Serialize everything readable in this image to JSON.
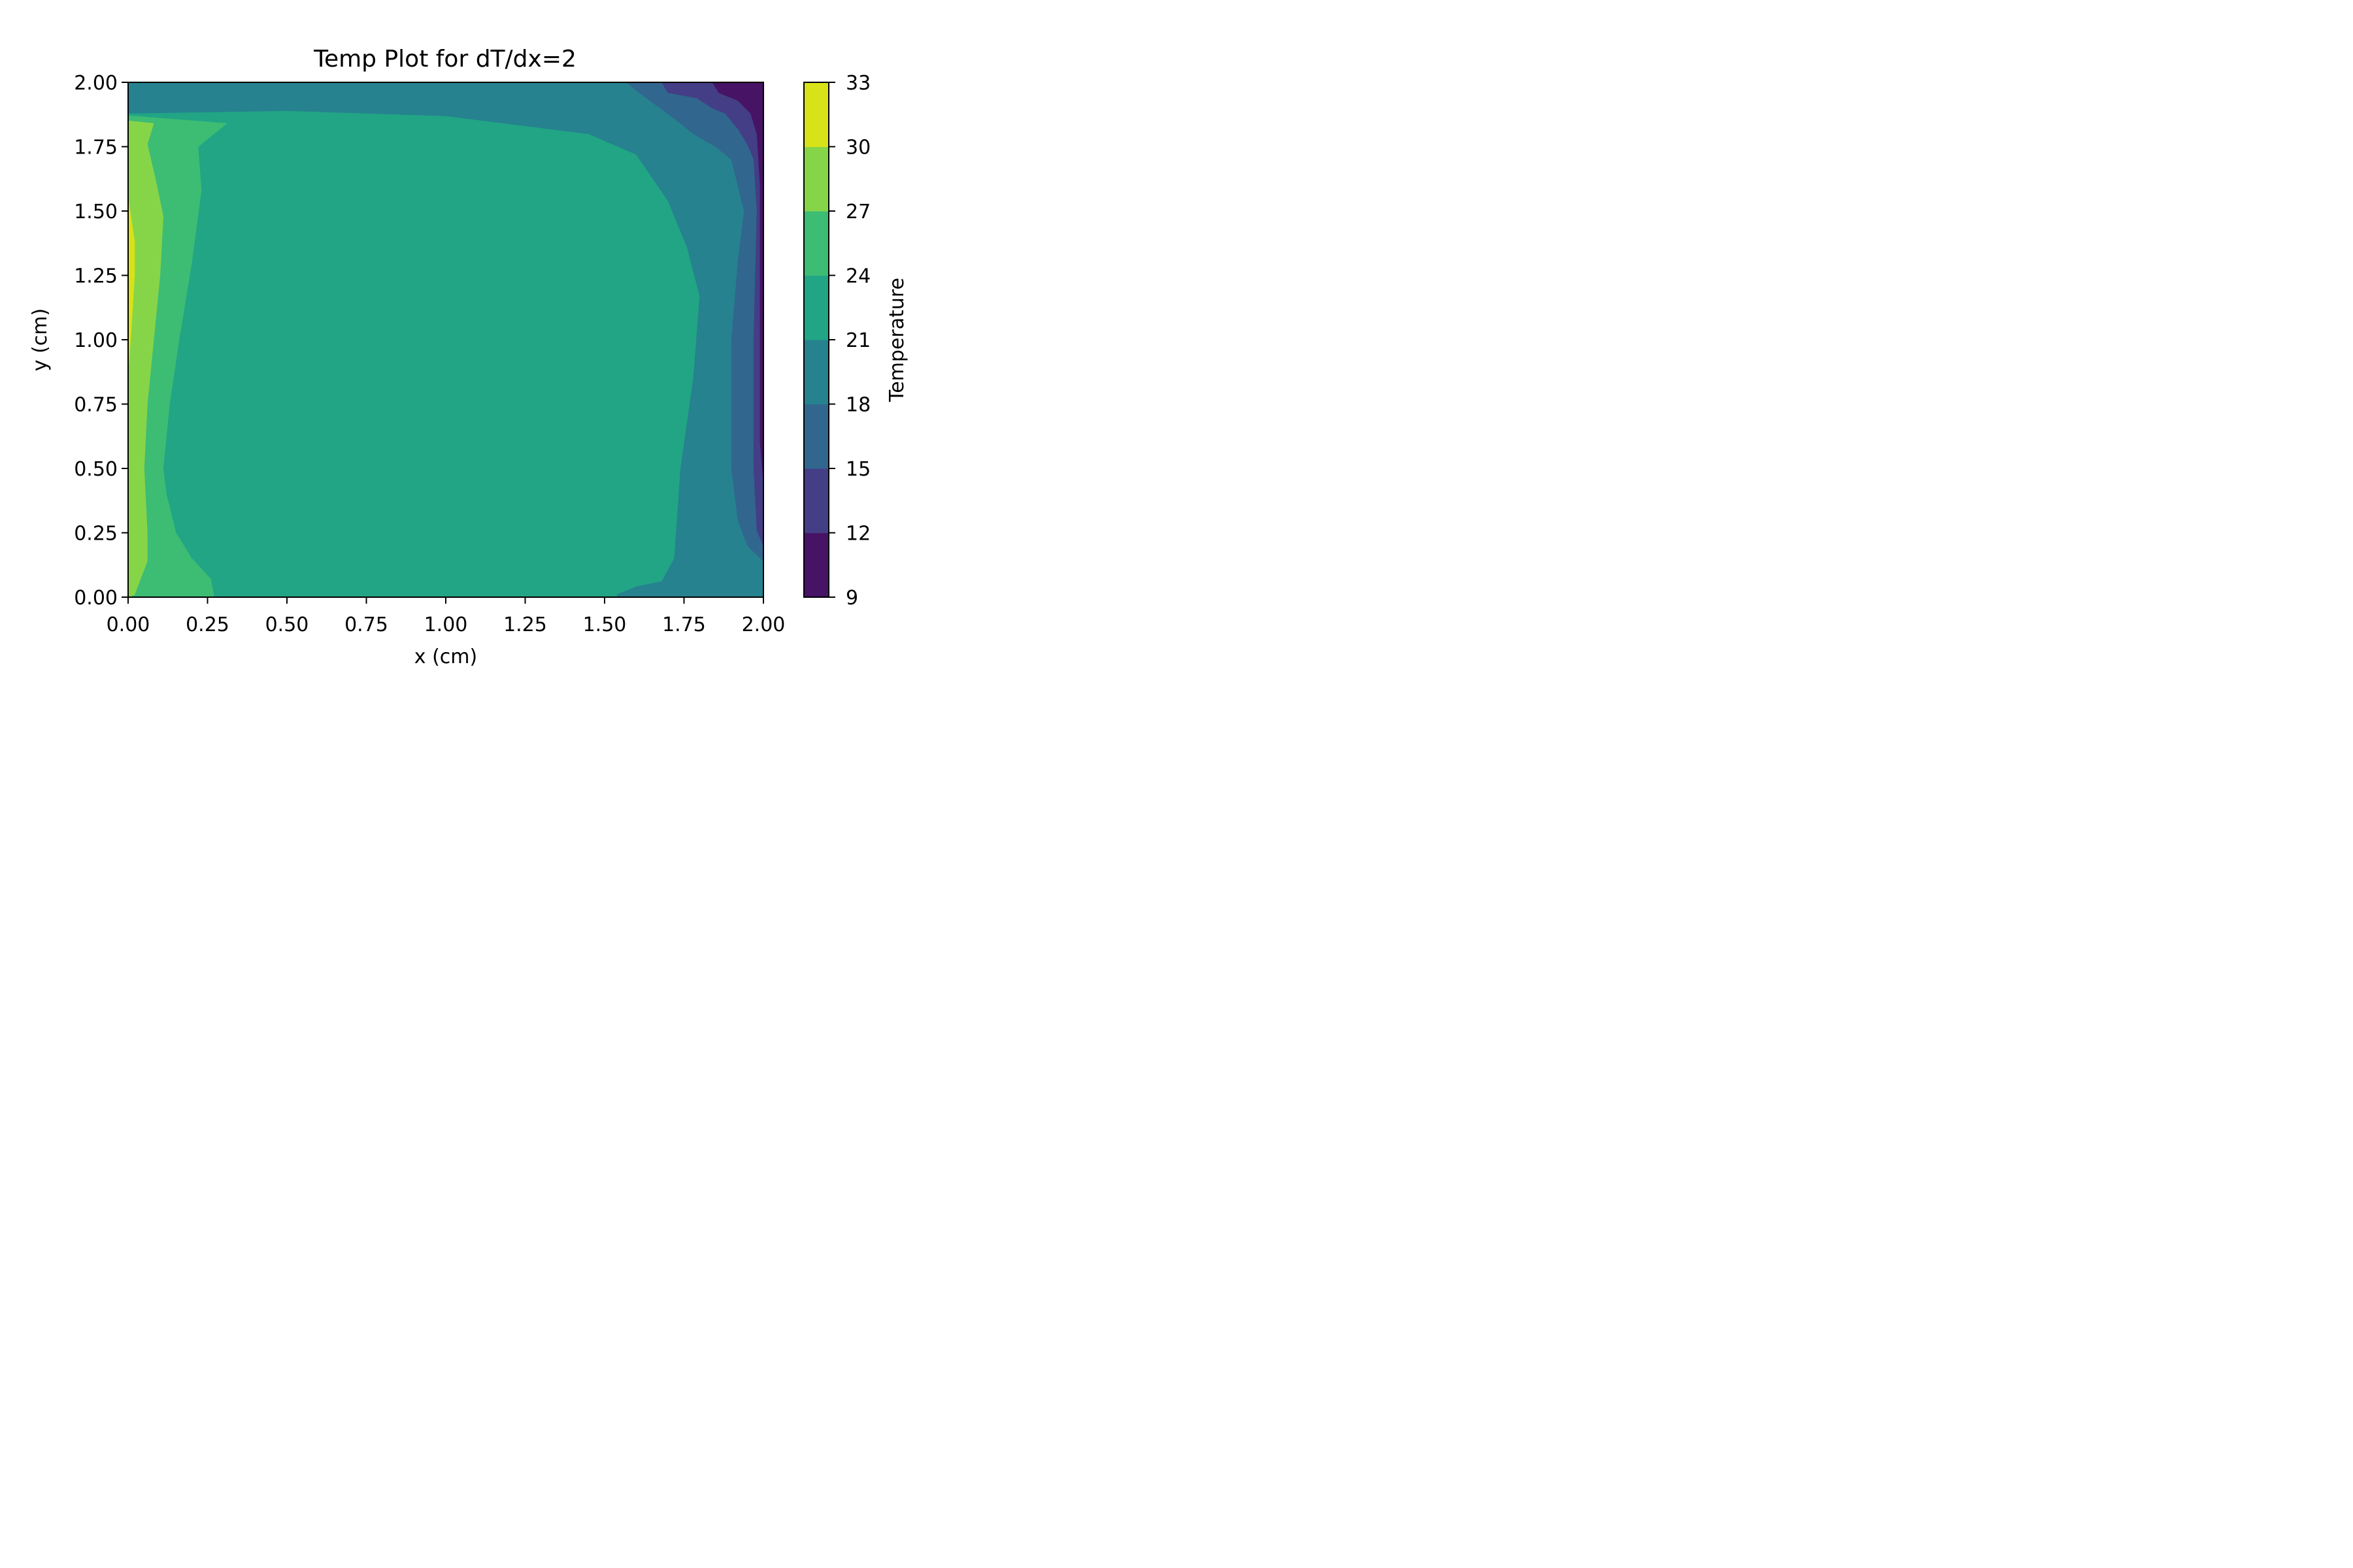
{
  "chart_data": {
    "type": "heatmap",
    "subtype": "filled-contour",
    "title": "Temp Plot for dT/dx=2",
    "xlabel": "x (cm)",
    "ylabel": "y (cm)",
    "xlim": [
      0.0,
      2.0
    ],
    "ylim": [
      0.0,
      2.0
    ],
    "x_ticks": [
      "0.00",
      "0.25",
      "0.50",
      "0.75",
      "1.00",
      "1.25",
      "1.50",
      "1.75",
      "2.00"
    ],
    "y_ticks": [
      "0.00",
      "0.25",
      "0.50",
      "0.75",
      "1.00",
      "1.25",
      "1.50",
      "1.75",
      "2.00"
    ],
    "grid": false,
    "colormap": "viridis",
    "colorbar": {
      "label": "Temperature",
      "levels": [
        9,
        12,
        15,
        18,
        21,
        24,
        27,
        30,
        33
      ],
      "tick_labels": [
        "9",
        "12",
        "15",
        "18",
        "21",
        "24",
        "27",
        "30",
        "33"
      ],
      "colors": [
        "#471365",
        "#433e85",
        "#31668e",
        "#26828e",
        "#21a585",
        "#3dbc74",
        "#86d549",
        "#d8e219"
      ]
    },
    "contour_regions": [
      {
        "band": [
          21,
          24
        ],
        "color": "#21a585",
        "points": [
          [
            0.0,
            0.0
          ],
          [
            2.0,
            0.0
          ],
          [
            2.0,
            2.0
          ],
          [
            0.0,
            2.0
          ]
        ]
      },
      {
        "band": [
          18,
          21
        ],
        "color": "#26828e",
        "points": [
          [
            1.54,
            0.0
          ],
          [
            2.0,
            0.0
          ],
          [
            2.0,
            2.0
          ],
          [
            0.0,
            2.0
          ],
          [
            0.0,
            1.88
          ],
          [
            0.5,
            1.89
          ],
          [
            1.0,
            1.87
          ],
          [
            1.45,
            1.8
          ],
          [
            1.6,
            1.72
          ],
          [
            1.7,
            1.54
          ],
          [
            1.76,
            1.36
          ],
          [
            1.8,
            1.17
          ],
          [
            1.78,
            0.85
          ],
          [
            1.74,
            0.5
          ],
          [
            1.72,
            0.15
          ],
          [
            1.68,
            0.06
          ],
          [
            1.6,
            0.04
          ],
          [
            1.54,
            0.01
          ]
        ]
      },
      {
        "band": [
          15,
          18
        ],
        "color": "#31668e",
        "points": [
          [
            2.0,
            0.14
          ],
          [
            1.95,
            0.2
          ],
          [
            1.92,
            0.3
          ],
          [
            1.9,
            0.5
          ],
          [
            1.9,
            1.0
          ],
          [
            1.92,
            1.3
          ],
          [
            1.94,
            1.5
          ],
          [
            1.9,
            1.7
          ],
          [
            1.85,
            1.75
          ],
          [
            1.78,
            1.8
          ],
          [
            1.72,
            1.86
          ],
          [
            1.62,
            1.95
          ],
          [
            1.57,
            2.0
          ],
          [
            2.0,
            2.0
          ]
        ]
      },
      {
        "band": [
          12,
          15
        ],
        "color": "#433e85",
        "points": [
          [
            2.0,
            0.2
          ],
          [
            1.98,
            0.26
          ],
          [
            1.97,
            0.5
          ],
          [
            1.97,
            1.0
          ],
          [
            1.98,
            1.5
          ],
          [
            1.97,
            1.7
          ],
          [
            1.95,
            1.76
          ],
          [
            1.92,
            1.82
          ],
          [
            1.88,
            1.88
          ],
          [
            1.84,
            1.9
          ],
          [
            1.79,
            1.94
          ],
          [
            1.7,
            1.96
          ],
          [
            1.68,
            2.0
          ],
          [
            2.0,
            2.0
          ]
        ]
      },
      {
        "band": [
          9,
          12
        ],
        "color": "#471365",
        "points": [
          [
            2.0,
            0.45
          ],
          [
            1.99,
            0.6
          ],
          [
            1.99,
            1.2
          ],
          [
            1.99,
            1.6
          ],
          [
            1.98,
            1.8
          ],
          [
            1.96,
            1.88
          ],
          [
            1.92,
            1.93
          ],
          [
            1.86,
            1.96
          ],
          [
            1.84,
            2.0
          ],
          [
            2.0,
            2.0
          ]
        ]
      },
      {
        "band": [
          24,
          27
        ],
        "color": "#3dbc74",
        "points": [
          [
            0.0,
            0.0
          ],
          [
            0.27,
            0.0
          ],
          [
            0.26,
            0.07
          ],
          [
            0.2,
            0.15
          ],
          [
            0.15,
            0.25
          ],
          [
            0.12,
            0.4
          ],
          [
            0.11,
            0.5
          ],
          [
            0.13,
            0.75
          ],
          [
            0.16,
            1.0
          ],
          [
            0.2,
            1.3
          ],
          [
            0.23,
            1.58
          ],
          [
            0.22,
            1.75
          ],
          [
            0.31,
            1.84
          ],
          [
            0.0,
            1.87
          ]
        ]
      },
      {
        "band": [
          27,
          30
        ],
        "color": "#86d549",
        "points": [
          [
            0.0,
            0.0
          ],
          [
            0.02,
            0.01
          ],
          [
            0.06,
            0.14
          ],
          [
            0.06,
            0.25
          ],
          [
            0.05,
            0.5
          ],
          [
            0.06,
            0.75
          ],
          [
            0.08,
            1.0
          ],
          [
            0.1,
            1.25
          ],
          [
            0.11,
            1.48
          ],
          [
            0.09,
            1.6
          ],
          [
            0.06,
            1.76
          ],
          [
            0.08,
            1.84
          ],
          [
            0.0,
            1.85
          ]
        ]
      },
      {
        "band": [
          30,
          33
        ],
        "color": "#d8e219",
        "points": [
          [
            0.0,
            0.88
          ],
          [
            0.01,
            1.05
          ],
          [
            0.02,
            1.25
          ],
          [
            0.02,
            1.38
          ],
          [
            0.0,
            1.55
          ]
        ]
      }
    ]
  }
}
